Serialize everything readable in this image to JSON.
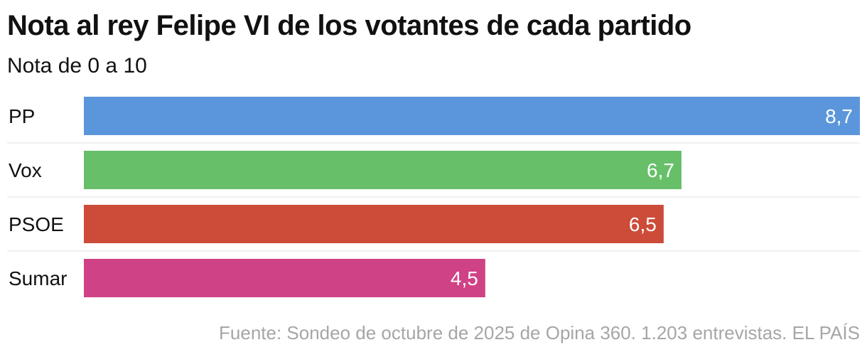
{
  "header": {
    "title": "Nota al rey Felipe VI de los votantes de cada partido",
    "subtitle": "Nota de 0 a 10"
  },
  "footer": {
    "source": "Fuente: Sondeo de octubre de 2025 de Opina 360. 1.203 entrevistas. EL PAÍS"
  },
  "chart_data": {
    "type": "bar",
    "orientation": "horizontal",
    "title": "Nota al rey Felipe VI de los votantes de cada partido",
    "subtitle": "Nota de 0 a 10",
    "categories": [
      "PP",
      "Vox",
      "PSOE",
      "Sumar"
    ],
    "values": [
      8.7,
      6.7,
      6.5,
      4.5
    ],
    "value_labels": [
      "8,7",
      "6,7",
      "6,5",
      "4,5"
    ],
    "colors": [
      "#5b96dc",
      "#67bf69",
      "#cc4c39",
      "#d04286"
    ],
    "xlim": [
      0,
      8.7
    ],
    "grid": false,
    "xlabel": "",
    "ylabel": ""
  }
}
